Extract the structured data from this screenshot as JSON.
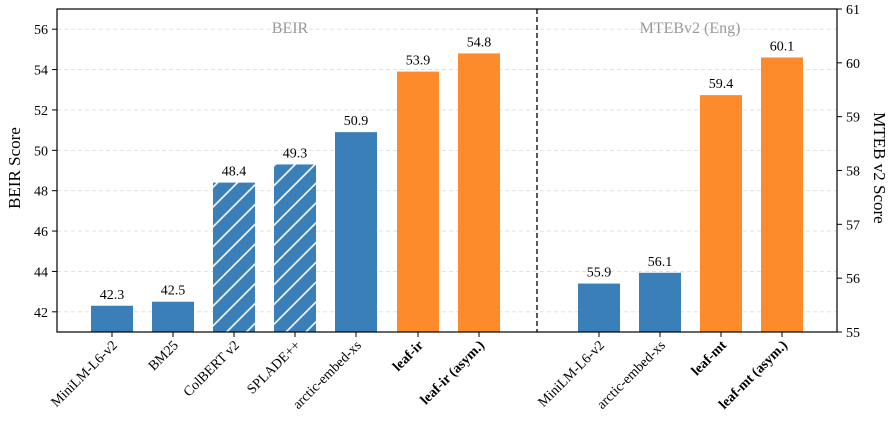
{
  "chart_data": [
    {
      "type": "bar",
      "panel": "left",
      "title": "BEIR",
      "ylabel": "BEIR Score",
      "ylim": [
        41,
        57
      ],
      "yticks": [
        42,
        44,
        46,
        48,
        50,
        52,
        54,
        56
      ],
      "grid": true,
      "categories": [
        "MiniLM-L6-v2",
        "BM25",
        "ColBERT v2",
        "SPLADE++",
        "arctic-embed-xs",
        "leaf-ir",
        "leaf-ir (asym.)"
      ],
      "values": [
        42.3,
        42.5,
        48.4,
        49.3,
        50.9,
        53.9,
        54.8
      ],
      "value_labels": [
        "42.3",
        "42.5",
        "48.4",
        "49.3",
        "50.9",
        "53.9",
        "54.8"
      ],
      "styles": [
        "solid",
        "solid",
        "hatched",
        "hatched",
        "solid",
        "solid",
        "solid"
      ],
      "colors": [
        "#3a7fb8",
        "#3a7fb8",
        "#3a7fb8",
        "#3a7fb8",
        "#3a7fb8",
        "#fd8b2c",
        "#fd8b2c"
      ],
      "bold": [
        false,
        false,
        false,
        false,
        false,
        true,
        true
      ]
    },
    {
      "type": "bar",
      "panel": "right",
      "title": "MTEBv2 (Eng)",
      "ylabel": "MTEB v2 Score",
      "ylim": [
        55,
        61
      ],
      "yticks": [
        55,
        56,
        57,
        58,
        59,
        60,
        61
      ],
      "grid": true,
      "categories": [
        "MiniLM-L6-v2",
        "arctic-embed-xs",
        "leaf-mt",
        "leaf-mt (asym.)"
      ],
      "values": [
        55.9,
        56.1,
        59.4,
        60.1
      ],
      "value_labels": [
        "55.9",
        "56.1",
        "59.4",
        "60.1"
      ],
      "styles": [
        "solid",
        "solid",
        "solid",
        "solid"
      ],
      "colors": [
        "#3a7fb8",
        "#3a7fb8",
        "#fd8b2c",
        "#fd8b2c"
      ],
      "bold": [
        false,
        false,
        true,
        true
      ]
    }
  ]
}
